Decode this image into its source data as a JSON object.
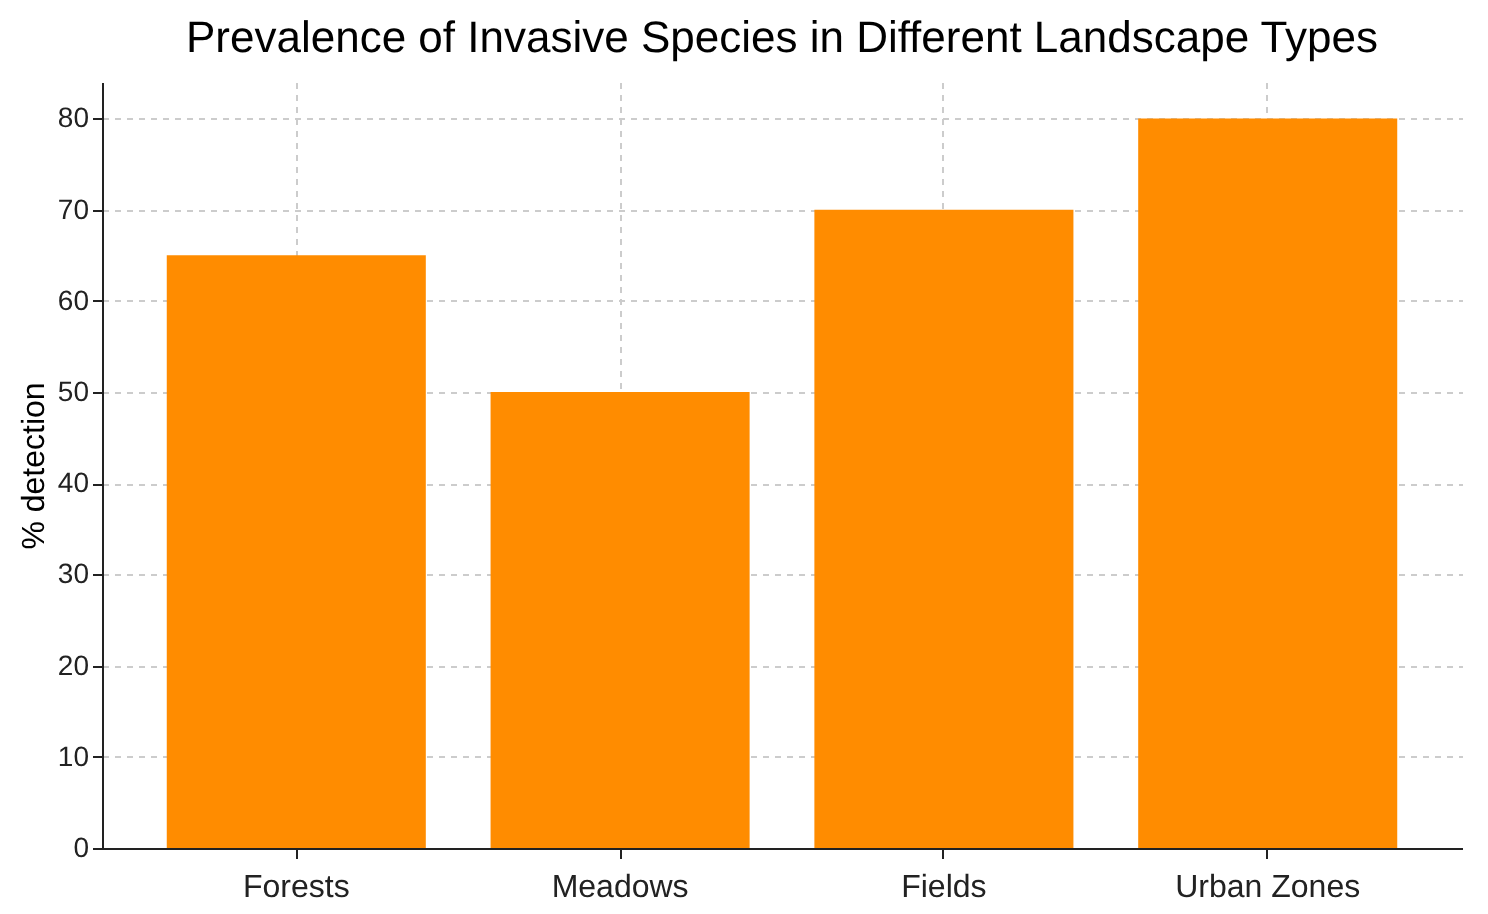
{
  "chart_data": {
    "type": "bar",
    "title": "Prevalence of Invasive Species in Different Landscape Types",
    "ylabel": "% detection",
    "categories": [
      "Forests",
      "Meadows",
      "Fields",
      "Urban Zones"
    ],
    "values": [
      65,
      50,
      70,
      80
    ],
    "color": "#ff8c00",
    "ylim": [
      0,
      84
    ],
    "yticks": [
      0,
      10,
      20,
      30,
      40,
      50,
      60,
      70,
      80
    ],
    "grid": true
  }
}
